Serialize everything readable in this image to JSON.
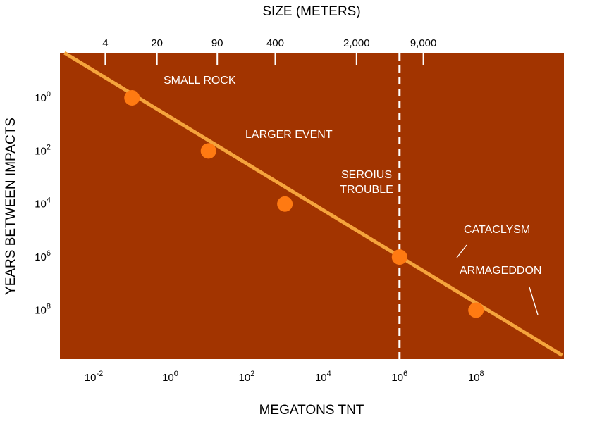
{
  "chart_data": {
    "type": "scatter",
    "plot_background": "#A23400",
    "line_color": "#F5A43C",
    "marker_color": "#FF7A12",
    "top_title": "SIZE (METERS)",
    "xlabel": "MEGATONS TNT",
    "ylabel": "YEARS BETWEEN IMPACTS",
    "x_scale": "log",
    "y_scale": "log",
    "y_inverted": true,
    "xlim": [
      0.0013,
      20000000000
    ],
    "ylim": [
      0.02,
      7000000000
    ],
    "x_ticks": [
      {
        "value": 0.01,
        "base": "10",
        "exp": "-2"
      },
      {
        "value": 1,
        "base": "10",
        "exp": "0"
      },
      {
        "value": 100,
        "base": "10",
        "exp": "2"
      },
      {
        "value": 10000,
        "base": "10",
        "exp": "4"
      },
      {
        "value": 1000000,
        "base": "10",
        "exp": "6"
      },
      {
        "value": 100000000,
        "base": "10",
        "exp": "8"
      }
    ],
    "y_ticks": [
      {
        "value": 1,
        "base": "10",
        "exp": "0"
      },
      {
        "value": 100,
        "base": "10",
        "exp": "2"
      },
      {
        "value": 10000,
        "base": "10",
        "exp": "4"
      },
      {
        "value": 1000000,
        "base": "10",
        "exp": "6"
      },
      {
        "value": 100000000,
        "base": "10",
        "exp": "8"
      }
    ],
    "top_ticks": [
      {
        "label": "4",
        "megatons": 0.02
      },
      {
        "label": "20",
        "megatons": 0.45
      },
      {
        "label": "90",
        "megatons": 17
      },
      {
        "label": "400",
        "megatons": 560
      },
      {
        "label": "2,000",
        "megatons": 75000
      },
      {
        "label": "9,000",
        "megatons": 4200000
      }
    ],
    "trend_line": {
      "from": {
        "x": 0.0017,
        "y": 0.02
      },
      "to": {
        "x": 18000000000,
        "y": 5000000000
      }
    },
    "threshold_line": {
      "x": 1000000,
      "style": "dashed"
    },
    "points": [
      {
        "x": 0.1,
        "y": 1,
        "label": [
          "SMALL ROCK"
        ]
      },
      {
        "x": 10,
        "y": 100,
        "label": [
          "LARGER EVENT"
        ]
      },
      {
        "x": 1000,
        "y": 10000,
        "label": [
          "SEROIUS",
          "TROUBLE"
        ]
      },
      {
        "x": 1000000,
        "y": 1000000,
        "label": [
          "CATACLYSM"
        ]
      },
      {
        "x": 100000000,
        "y": 100000000,
        "label": [
          "ARMAGEDDON"
        ]
      }
    ]
  }
}
